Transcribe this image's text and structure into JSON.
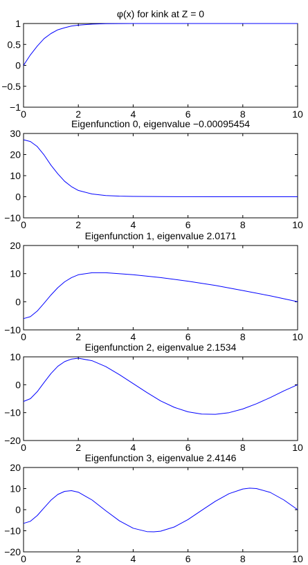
{
  "colors": {
    "line": "#0000ff",
    "axes": "#000000",
    "background": "#ffffff"
  },
  "chart_data": [
    {
      "type": "line",
      "title": "φ(x) for kink at Z = 0",
      "xlim": [
        0,
        10
      ],
      "ylim": [
        -1,
        1
      ],
      "xticks": [
        0,
        2,
        4,
        6,
        8,
        10
      ],
      "yticks": [
        -1,
        -0.5,
        0,
        0.5,
        1
      ],
      "ytick_labels": [
        "−1",
        "−0.5",
        "0",
        "0.5",
        "1"
      ],
      "grid": false,
      "series": [
        {
          "x": [
            0,
            0.25,
            0.5,
            0.75,
            1.0,
            1.25,
            1.5,
            1.75,
            2.0,
            2.5,
            3.0,
            4.0,
            5.0,
            6.0,
            7.0,
            8.0,
            9.0,
            10.0
          ],
          "values": [
            0.0,
            0.25,
            0.46,
            0.64,
            0.76,
            0.85,
            0.9,
            0.94,
            0.96,
            0.985,
            0.995,
            1.0,
            1.0,
            1.0,
            1.0,
            1.0,
            1.0,
            1.0
          ]
        }
      ]
    },
    {
      "type": "line",
      "title": "Eigenfunction 0, eigenvalue −0.00095454",
      "xlim": [
        0,
        10
      ],
      "ylim": [
        -10,
        30
      ],
      "xticks": [
        0,
        2,
        4,
        6,
        8,
        10
      ],
      "yticks": [
        -10,
        0,
        10,
        20,
        30
      ],
      "ytick_labels": [
        "−10",
        "0",
        "10",
        "20",
        "30"
      ],
      "grid": false,
      "series": [
        {
          "x": [
            0,
            0.25,
            0.5,
            0.75,
            1.0,
            1.25,
            1.5,
            1.75,
            2.0,
            2.5,
            3.0,
            3.5,
            4.0,
            5.0,
            6.0,
            7.0,
            8.0,
            9.0,
            10.0
          ],
          "values": [
            27.0,
            26.2,
            23.8,
            19.8,
            15.0,
            10.9,
            7.3,
            4.8,
            3.0,
            1.3,
            0.6,
            0.3,
            0.15,
            0.05,
            0.02,
            0.0,
            0.0,
            0.0,
            0.0
          ]
        }
      ]
    },
    {
      "type": "line",
      "title": "Eigenfunction 1, eigenvalue 2.0171",
      "xlim": [
        0,
        10
      ],
      "ylim": [
        -10,
        20
      ],
      "xticks": [
        0,
        2,
        4,
        6,
        8,
        10
      ],
      "yticks": [
        -10,
        0,
        10,
        20
      ],
      "ytick_labels": [
        "−10",
        "0",
        "10",
        "20"
      ],
      "grid": false,
      "series": [
        {
          "x": [
            0,
            0.25,
            0.5,
            0.75,
            1.0,
            1.25,
            1.5,
            1.75,
            2.0,
            2.5,
            3.0,
            4.0,
            5.0,
            6.0,
            7.0,
            8.0,
            9.0,
            10.0
          ],
          "values": [
            -6.0,
            -5.3,
            -3.3,
            -0.5,
            2.4,
            5.0,
            7.1,
            8.6,
            9.6,
            10.3,
            10.3,
            9.6,
            8.6,
            7.3,
            5.8,
            4.0,
            2.1,
            0.0
          ]
        }
      ]
    },
    {
      "type": "line",
      "title": "Eigenfunction 2, eigenvalue 2.1534",
      "xlim": [
        0,
        10
      ],
      "ylim": [
        -20,
        10
      ],
      "xticks": [
        0,
        2,
        4,
        6,
        8,
        10
      ],
      "yticks": [
        -20,
        -10,
        0,
        10
      ],
      "ytick_labels": [
        "−20",
        "−10",
        "0",
        "10"
      ],
      "grid": false,
      "series": [
        {
          "x": [
            0,
            0.25,
            0.5,
            0.75,
            1.0,
            1.25,
            1.5,
            1.75,
            2.0,
            2.5,
            3.0,
            3.5,
            4.0,
            4.5,
            5.0,
            5.5,
            6.0,
            6.5,
            7.0,
            7.5,
            8.0,
            8.5,
            9.0,
            9.5,
            10.0
          ],
          "values": [
            -6.0,
            -5.0,
            -2.5,
            0.8,
            4.0,
            6.6,
            8.3,
            9.2,
            9.5,
            8.6,
            6.5,
            3.6,
            0.4,
            -2.8,
            -5.8,
            -8.1,
            -9.7,
            -10.5,
            -10.6,
            -10.0,
            -8.7,
            -6.8,
            -4.6,
            -2.2,
            0.0
          ]
        }
      ]
    },
    {
      "type": "line",
      "title": "Eigenfunction 3, eigenvalue 2.4146",
      "xlim": [
        0,
        10
      ],
      "ylim": [
        -20,
        20
      ],
      "xticks": [
        0,
        2,
        4,
        6,
        8,
        10
      ],
      "yticks": [
        -20,
        -10,
        0,
        10,
        20
      ],
      "ytick_labels": [
        "−20",
        "−10",
        "0",
        "10",
        "20"
      ],
      "grid": false,
      "series": [
        {
          "x": [
            0,
            0.25,
            0.5,
            0.75,
            1.0,
            1.25,
            1.5,
            1.75,
            2.0,
            2.5,
            3.0,
            3.5,
            4.0,
            4.5,
            4.75,
            5.0,
            5.5,
            6.0,
            6.5,
            7.0,
            7.5,
            8.0,
            8.25,
            8.5,
            9.0,
            9.5,
            10.0
          ],
          "values": [
            -6.5,
            -5.5,
            -2.8,
            0.9,
            4.5,
            7.2,
            8.7,
            9.0,
            8.3,
            4.6,
            -0.5,
            -5.3,
            -8.8,
            -10.4,
            -10.5,
            -10.2,
            -8.2,
            -4.7,
            -0.3,
            4.0,
            7.6,
            9.8,
            10.2,
            10.0,
            8.2,
            4.6,
            0.0
          ]
        }
      ]
    }
  ]
}
